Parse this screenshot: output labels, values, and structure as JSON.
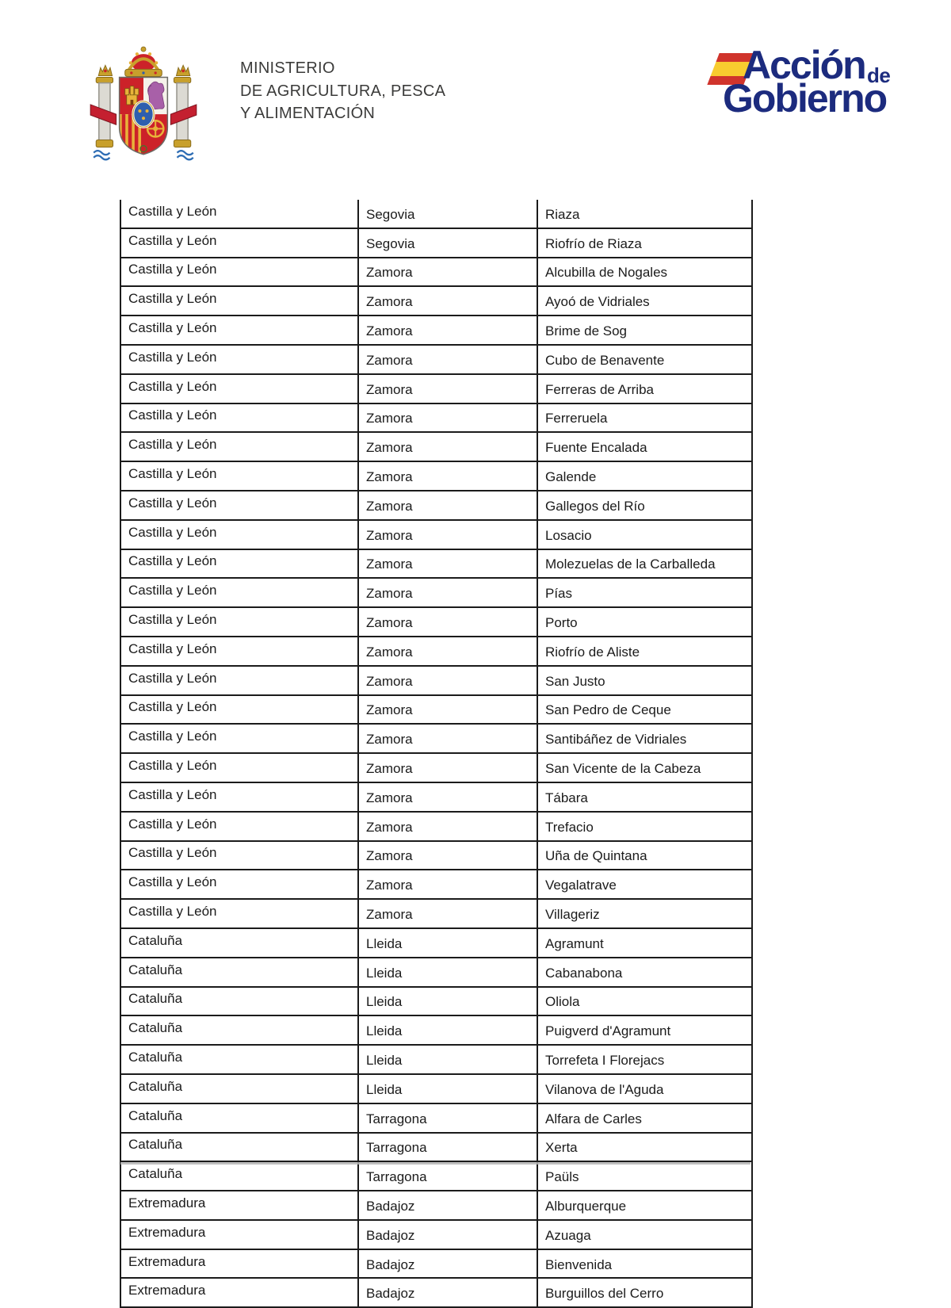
{
  "header": {
    "ministry": {
      "line1": "MINISTERIO",
      "line2": "DE AGRICULTURA, PESCA",
      "line3": "Y ALIMENTACIÓN",
      "text_color": "#3b3b3a"
    },
    "accion_logo": {
      "word1": "Acción",
      "connector": "de",
      "word2": "Gobierno",
      "color": "#1c2b7e",
      "flag_red": "#d0342c",
      "flag_yellow": "#f8cc2f"
    }
  },
  "table": {
    "border_color": "#1b1b1b",
    "text_color": "#1b1b1b",
    "rows": [
      [
        "Castilla y León",
        "Segovia",
        "Riaza"
      ],
      [
        "Castilla y León",
        "Segovia",
        "Riofrío de Riaza"
      ],
      [
        "Castilla y León",
        "Zamora",
        "Alcubilla de Nogales"
      ],
      [
        "Castilla y León",
        "Zamora",
        "Ayoó de Vidriales"
      ],
      [
        "Castilla y León",
        "Zamora",
        "Brime de Sog"
      ],
      [
        "Castilla y León",
        "Zamora",
        "Cubo de Benavente"
      ],
      [
        "Castilla y León",
        "Zamora",
        "Ferreras de Arriba"
      ],
      [
        "Castilla y León",
        "Zamora",
        "Ferreruela"
      ],
      [
        "Castilla y León",
        "Zamora",
        "Fuente Encalada"
      ],
      [
        "Castilla y León",
        "Zamora",
        "Galende"
      ],
      [
        "Castilla y León",
        "Zamora",
        "Gallegos del Río"
      ],
      [
        "Castilla y León",
        "Zamora",
        "Losacio"
      ],
      [
        "Castilla y León",
        "Zamora",
        "Molezuelas de la Carballeda"
      ],
      [
        "Castilla y León",
        "Zamora",
        "Pías"
      ],
      [
        "Castilla y León",
        "Zamora",
        "Porto"
      ],
      [
        "Castilla y León",
        "Zamora",
        "Riofrío de Aliste"
      ],
      [
        "Castilla y León",
        "Zamora",
        "San Justo"
      ],
      [
        "Castilla y León",
        "Zamora",
        "San Pedro de Ceque"
      ],
      [
        "Castilla y León",
        "Zamora",
        "Santibáñez de Vidriales"
      ],
      [
        "Castilla y León",
        "Zamora",
        "San Vicente de la Cabeza"
      ],
      [
        "Castilla y León",
        "Zamora",
        "Tábara"
      ],
      [
        "Castilla y León",
        "Zamora",
        "Trefacio"
      ],
      [
        "Castilla y León",
        "Zamora",
        "Uña de Quintana"
      ],
      [
        "Castilla y León",
        "Zamora",
        "Vegalatrave"
      ],
      [
        "Castilla y León",
        "Zamora",
        "Villageriz"
      ],
      [
        "Cataluña",
        "Lleida",
        "Agramunt"
      ],
      [
        "Cataluña",
        "Lleida",
        "Cabanabona"
      ],
      [
        "Cataluña",
        "Lleida",
        "Oliola"
      ],
      [
        "Cataluña",
        "Lleida",
        "Puigverd d'Agramunt"
      ],
      [
        "Cataluña",
        "Lleida",
        "Torrefeta I Florejacs"
      ],
      [
        "Cataluña",
        "Lleida",
        "Vilanova de l'Aguda"
      ],
      [
        "Cataluña",
        "Tarragona",
        "Alfara de Carles"
      ],
      [
        "Cataluña",
        "Tarragona",
        "Xerta"
      ],
      [
        "Cataluña",
        "Tarragona",
        "Paüls"
      ],
      [
        "Extremadura",
        "Badajoz",
        "Alburquerque"
      ],
      [
        "Extremadura",
        "Badajoz",
        "Azuaga"
      ],
      [
        "Extremadura",
        "Badajoz",
        "Bienvenida"
      ],
      [
        "Extremadura",
        "Badajoz",
        "Burguillos del Cerro"
      ]
    ]
  }
}
